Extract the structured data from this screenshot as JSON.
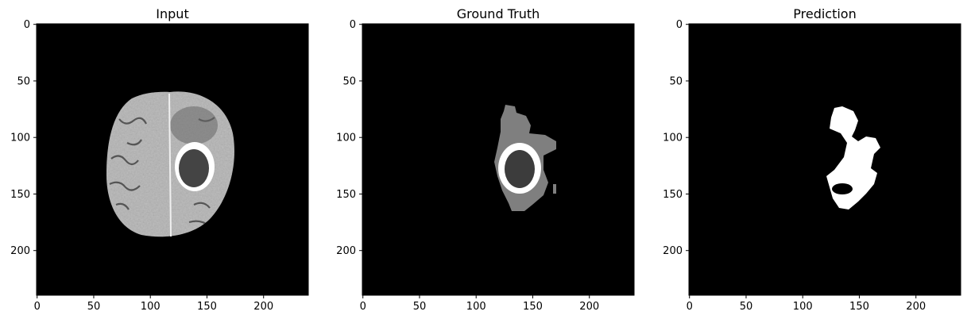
{
  "panels": [
    {
      "title": "Input",
      "x_ticks": [
        "0",
        "50",
        "100",
        "150",
        "200"
      ],
      "y_ticks": [
        "0",
        "50",
        "100",
        "150",
        "200"
      ]
    },
    {
      "title": "Ground Truth",
      "x_ticks": [
        "0",
        "50",
        "100",
        "150",
        "200"
      ],
      "y_ticks": [
        "0",
        "50",
        "100",
        "150",
        "200"
      ]
    },
    {
      "title": "Prediction",
      "x_ticks": [
        "0",
        "50",
        "100",
        "150",
        "200"
      ],
      "y_ticks": [
        "0",
        "50",
        "100",
        "150",
        "200"
      ]
    }
  ],
  "colors": {
    "background": "#000000",
    "brain_tissue": "#b8b8b8",
    "edema": "#7f7f7f",
    "necrosis": "#3c3c3c",
    "enhancing": "#ffffff",
    "prediction": "#ffffff"
  }
}
